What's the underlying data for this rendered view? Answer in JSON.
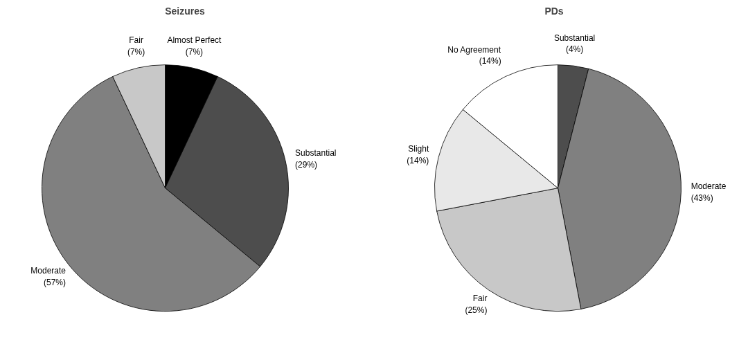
{
  "chart_data": [
    {
      "type": "pie",
      "title": "Seizures",
      "categories": [
        "Almost Perfect",
        "Substantial",
        "Moderate",
        "Fair"
      ],
      "values": [
        7,
        29,
        57,
        7
      ],
      "colors": [
        "#000000",
        "#4d4d4d",
        "#808080",
        "#c8c8c8"
      ],
      "value_labels": [
        "(7%)",
        "(29%)",
        "(57%)",
        "(7%)"
      ]
    },
    {
      "type": "pie",
      "title": "PDs",
      "categories": [
        "Substantial",
        "Moderate",
        "Fair",
        "Slight",
        "No Agreement"
      ],
      "values": [
        4,
        43,
        25,
        14,
        14
      ],
      "colors": [
        "#4d4d4d",
        "#808080",
        "#c8c8c8",
        "#e8e8e8",
        "#ffffff"
      ],
      "value_labels": [
        "(4%)",
        "(43%)",
        "(25%)",
        "(14%)",
        "(14%)"
      ]
    }
  ]
}
